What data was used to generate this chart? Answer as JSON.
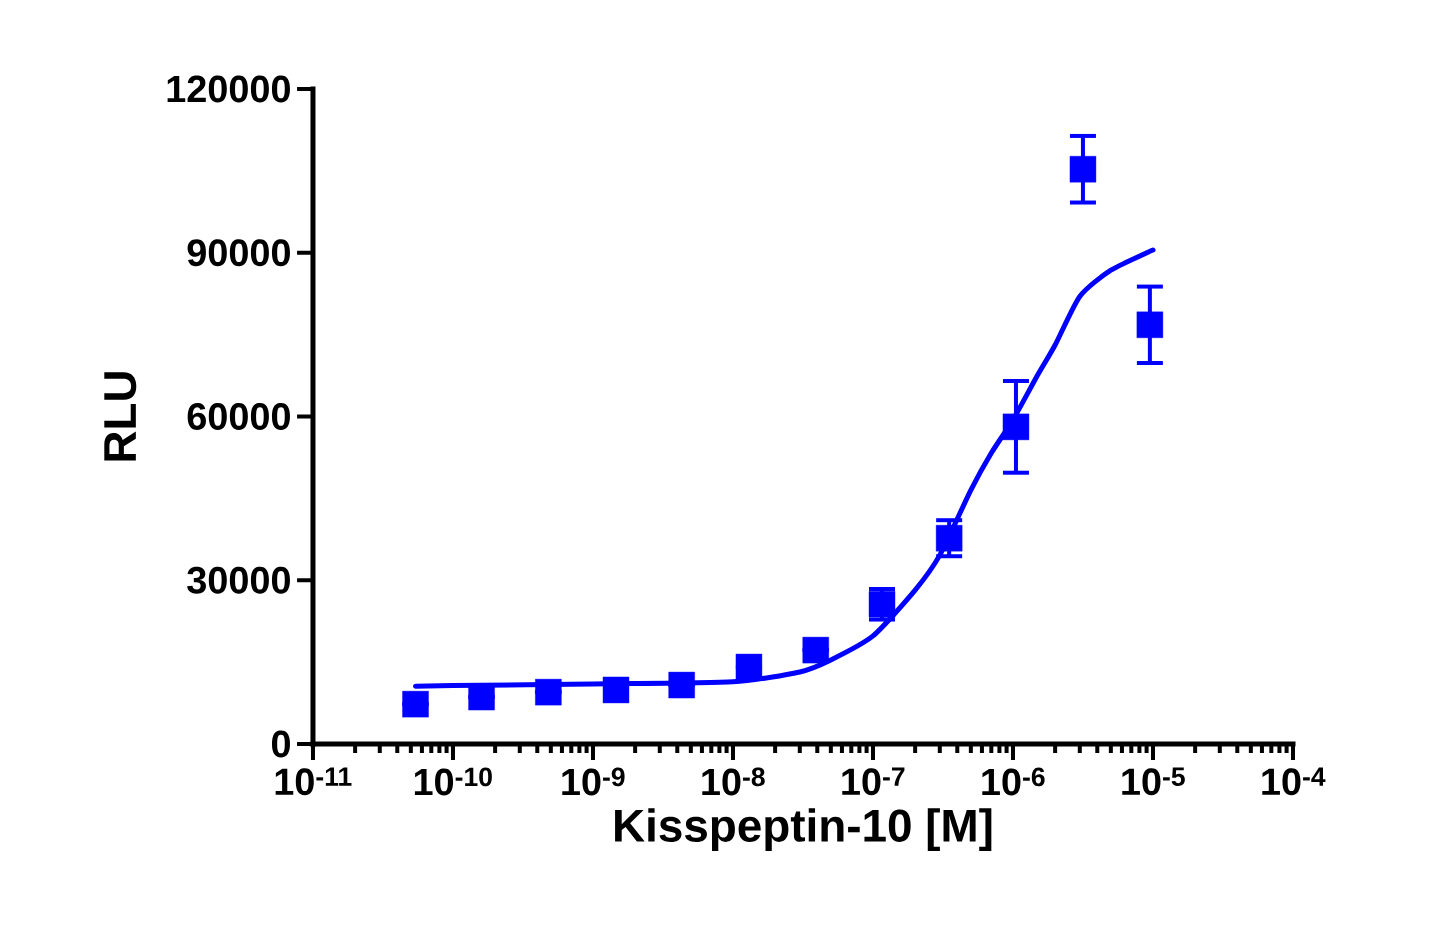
{
  "chart_data": {
    "type": "scatter",
    "xlabel": "Kisspeptin-10 [M]",
    "ylabel": "RLU",
    "log": "x",
    "xlim": [
      1e-11,
      0.0001
    ],
    "xticks": [
      {
        "value": 1e-11,
        "label": "10$^{-11}$"
      },
      {
        "value": 1e-10,
        "label": "10$^{-10}$"
      },
      {
        "value": 1e-09,
        "label": "10$^{-9}$"
      },
      {
        "value": 1e-08,
        "label": "10$^{-8}$"
      },
      {
        "value": 1e-07,
        "label": "10$^{-7}$"
      },
      {
        "value": 1e-06,
        "label": "10$^{-6}$"
      },
      {
        "value": 1e-05,
        "label": "10$^{-5}$"
      },
      {
        "value": 0.0001,
        "label": "10$^{-4}$"
      }
    ],
    "ylim": [
      0,
      120000
    ],
    "yticks": [
      0,
      30000,
      60000,
      90000,
      120000
    ],
    "series": [
      {
        "marker": "square",
        "color": "#0000ff",
        "x": [
          5.4e-11,
          1.6e-10,
          4.8e-10,
          1.46e-09,
          4.3e-09,
          1.3e-08,
          3.9e-08,
          1.16e-07,
          3.5e-07,
          1.05e-06,
          3.16e-06,
          9.5e-06
        ],
        "values": [
          7300,
          8600,
          9500,
          9900,
          10800,
          14100,
          17200,
          25600,
          37700,
          58100,
          105300,
          76800
        ],
        "errors": [
          null,
          null,
          null,
          null,
          null,
          null,
          null,
          2800,
          3300,
          8400,
          6100,
          7000
        ]
      },
      {
        "type": "line",
        "marker": "none",
        "color": "#0000ff",
        "x": [
          5.4e-11,
          1e-10,
          1e-09,
          1e-08,
          3e-08,
          5e-08,
          1e-07,
          2e-07,
          3e-07,
          5e-07,
          7e-07,
          1e-06,
          1.5e-06,
          2e-06,
          3e-06,
          5e-06,
          1e-05
        ],
        "values": [
          10600,
          10700,
          11000,
          11400,
          13200,
          15400,
          19800,
          28200,
          34600,
          46500,
          53300,
          59400,
          67600,
          73100,
          82000,
          86800,
          90500
        ]
      }
    ]
  }
}
